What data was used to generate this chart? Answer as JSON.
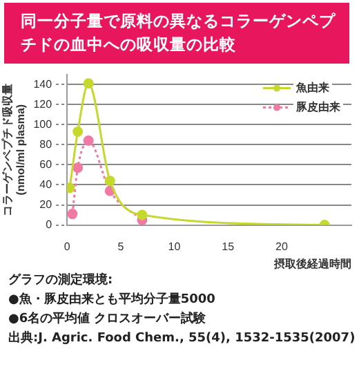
{
  "chart_data": {
    "type": "line",
    "title": "同一分子量で原料の異なるコラーゲンペプチドの血中への吸収量の比較",
    "xlabel": "摂取後経過時間",
    "ylabel": "コラーゲンペプチド吸収量 (nmol/ml plasma)",
    "series": [
      {
        "name": "魚由来",
        "color": "#c5d82e",
        "line_style": "solid",
        "x": [
          0.25,
          1,
          2,
          4,
          7,
          24
        ],
        "values": [
          37,
          93,
          141,
          44,
          10,
          0
        ]
      },
      {
        "name": "豚皮由来",
        "color": "#f07aa3",
        "line_style": "dotted",
        "x": [
          0.5,
          1,
          2,
          4,
          7
        ],
        "values": [
          11,
          57,
          84,
          34,
          5
        ]
      }
    ],
    "xlim": [
      0,
      26.5
    ],
    "xticks": [
      0,
      5,
      10,
      15,
      20
    ],
    "ylim": [
      0,
      150
    ],
    "yticks": [
      0,
      20,
      40,
      60,
      80,
      100,
      120,
      140
    ],
    "grid": "y",
    "legend": "top right",
    "marker": "circle",
    "annotations": [
      "グラフの測定環境:",
      "●魚・豚皮由来とも平均分子量5000",
      "●6名の平均値 クロスオーバー試験",
      "出典:J. Agric. Food Chem., 55(4), 1532-1535(2007)"
    ]
  }
}
